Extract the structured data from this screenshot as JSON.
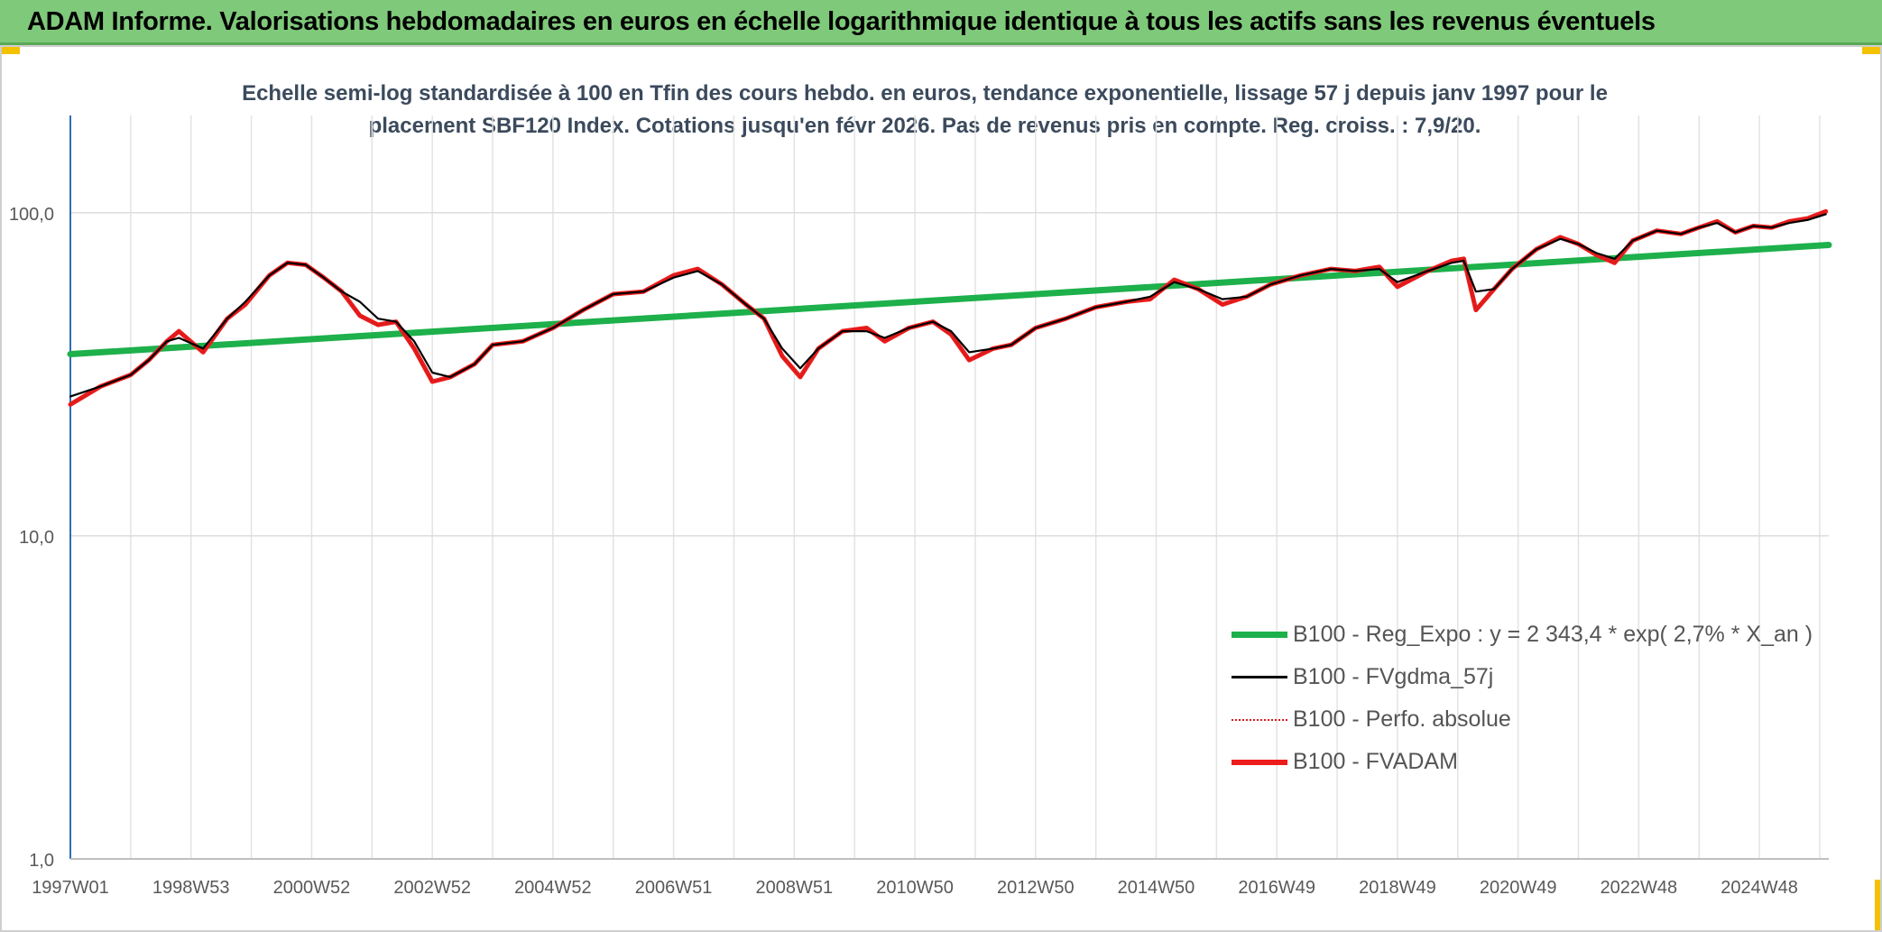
{
  "header": {
    "title": "ADAM Informe. Valorisations hebdomadaires en euros en échelle logarithmique identique à tous les actifs sans les revenus éventuels"
  },
  "chart_data": {
    "type": "line",
    "title": "Echelle semi-log standardisée à 100 en Tfin des cours hebdo. en euros, tendance exponentielle, lissage 57 j depuis janv 1997 pour le placement SBF120 Index. Cotations jusqu'en févr 2026. Pas de revenus pris en compte. Reg. croiss. : 7,9/20.",
    "title_line1": "Echelle semi-log standardisée à 100 en Tfin des cours hebdo. en euros, tendance exponentielle, lissage 57 j depuis janv 1997 pour le",
    "title_line2": "placement SBF120 Index. Cotations jusqu'en févr 2026. Pas de revenus pris en compte. Reg. croiss. : 7,9/20.",
    "y_scale": "log",
    "ylim": [
      1,
      200
    ],
    "xlim": [
      1997.0,
      2026.15
    ],
    "y_ticks": [
      {
        "value": 1,
        "label": "1,0"
      },
      {
        "value": 10,
        "label": "10,0"
      },
      {
        "value": 100,
        "label": "100,0"
      }
    ],
    "x_ticks": [
      {
        "year": 1997.0,
        "label": "1997W01"
      },
      {
        "year": 1999.0,
        "label": "1998W53"
      },
      {
        "year": 2001.0,
        "label": "2000W52"
      },
      {
        "year": 2003.0,
        "label": "2002W52"
      },
      {
        "year": 2005.0,
        "label": "2004W52"
      },
      {
        "year": 2007.0,
        "label": "2006W51"
      },
      {
        "year": 2009.0,
        "label": "2008W51"
      },
      {
        "year": 2011.0,
        "label": "2010W50"
      },
      {
        "year": 2013.0,
        "label": "2012W50"
      },
      {
        "year": 2015.0,
        "label": "2014W50"
      },
      {
        "year": 2017.0,
        "label": "2016W49"
      },
      {
        "year": 2019.0,
        "label": "2018W49"
      },
      {
        "year": 2021.0,
        "label": "2020W49"
      },
      {
        "year": 2023.0,
        "label": "2022W48"
      },
      {
        "year": 2025.0,
        "label": "2024W48"
      }
    ],
    "grid": true,
    "legend_position": "bottom-right",
    "series": [
      {
        "name": "B100 - Reg_Expo : y = 2 343,4 * exp( 2,7% *  X_an )",
        "color": "#1db04b",
        "style": "thick",
        "x": [
          1997.0,
          2026.15
        ],
        "values": [
          36.5,
          79.5
        ]
      },
      {
        "name": "B100 - FVgdma_57j",
        "color": "#000000",
        "style": "thin",
        "x": [
          1997.0,
          1997.5,
          1998.0,
          1998.3,
          1998.6,
          1998.8,
          1999.2,
          1999.6,
          1999.9,
          2000.3,
          2000.6,
          2000.9,
          2001.2,
          2001.5,
          2001.8,
          2002.1,
          2002.4,
          2002.7,
          2003.0,
          2003.3,
          2003.7,
          2004.0,
          2004.5,
          2005.0,
          2005.5,
          2006.0,
          2006.5,
          2007.0,
          2007.4,
          2007.8,
          2008.2,
          2008.5,
          2008.8,
          2009.1,
          2009.4,
          2009.8,
          2010.2,
          2010.5,
          2010.9,
          2011.3,
          2011.6,
          2011.9,
          2012.3,
          2012.6,
          2013.0,
          2013.5,
          2014.0,
          2014.5,
          2014.9,
          2015.3,
          2015.7,
          2016.1,
          2016.5,
          2016.9,
          2017.4,
          2017.9,
          2018.3,
          2018.7,
          2019.0,
          2019.5,
          2019.9,
          2020.1,
          2020.3,
          2020.6,
          2020.9,
          2021.3,
          2021.7,
          2022.0,
          2022.3,
          2022.6,
          2022.9,
          2023.3,
          2023.7,
          2024.0,
          2024.3,
          2024.6,
          2024.9,
          2025.2,
          2025.5,
          2025.8,
          2026.1
        ],
        "values": [
          27,
          29,
          31.5,
          35,
          40,
          41,
          38,
          47,
          53,
          64,
          70,
          69,
          63,
          57,
          53,
          47,
          46,
          40,
          32,
          31,
          34,
          39,
          40,
          44,
          50,
          56,
          57,
          63,
          66,
          60,
          52,
          47,
          38,
          33,
          38,
          43,
          43,
          41,
          44,
          46,
          43,
          37,
          38,
          39,
          44,
          47,
          51,
          53,
          55,
          61,
          58,
          54,
          55,
          60,
          64,
          67,
          66,
          67,
          61,
          66,
          70,
          71,
          57,
          58,
          67,
          77,
          83,
          80,
          75,
          72,
          82,
          88,
          86,
          90,
          93,
          87,
          91,
          90,
          93,
          95,
          99
        ]
      },
      {
        "name": "B100 - Perfo. absolue",
        "color": "#d81b1b",
        "style": "dotted",
        "x": [
          1997.0,
          1997.5,
          1998.0,
          1998.3,
          1998.6,
          1998.8,
          1999.2,
          1999.6,
          1999.9,
          2000.3,
          2000.6,
          2000.9,
          2001.2,
          2001.5,
          2001.8,
          2002.1,
          2002.4,
          2002.7,
          2003.0,
          2003.3,
          2003.7,
          2004.0,
          2004.5,
          2005.0,
          2005.5,
          2006.0,
          2006.5,
          2007.0,
          2007.4,
          2007.8,
          2008.2,
          2008.5,
          2008.8,
          2009.1,
          2009.4,
          2009.8,
          2010.2,
          2010.5,
          2010.9,
          2011.3,
          2011.6,
          2011.9,
          2012.3,
          2012.6,
          2013.0,
          2013.5,
          2014.0,
          2014.5,
          2014.9,
          2015.3,
          2015.7,
          2016.1,
          2016.5,
          2016.9,
          2017.4,
          2017.9,
          2018.3,
          2018.7,
          2019.0,
          2019.5,
          2019.9,
          2020.1,
          2020.3,
          2020.6,
          2020.9,
          2021.3,
          2021.7,
          2022.0,
          2022.3,
          2022.6,
          2022.9,
          2023.3,
          2023.7,
          2024.0,
          2024.3,
          2024.6,
          2024.9,
          2025.2,
          2025.5,
          2025.8,
          2026.1
        ],
        "values": [
          25.5,
          29,
          31.5,
          35,
          40,
          43,
          37,
          47,
          52,
          64,
          70,
          69,
          63,
          57,
          48,
          45,
          46,
          38,
          30,
          31,
          34,
          39,
          40,
          44,
          50,
          56,
          57,
          64,
          67,
          60,
          52,
          47,
          36,
          31,
          38,
          43,
          44,
          40,
          44,
          46,
          42,
          35,
          38,
          39,
          44,
          47,
          51,
          53,
          54,
          62,
          58,
          52,
          55,
          60,
          64,
          67,
          66,
          68,
          59,
          66,
          71,
          72,
          50,
          58,
          67,
          77,
          84,
          80,
          74,
          70,
          82,
          88,
          86,
          90,
          94,
          87,
          91,
          90,
          94,
          96,
          101
        ]
      },
      {
        "name": "B100 - FVADAM",
        "color": "#ec1c1c",
        "style": "thick",
        "x": [
          1997.0,
          1997.5,
          1998.0,
          1998.3,
          1998.6,
          1998.8,
          1999.2,
          1999.6,
          1999.9,
          2000.3,
          2000.6,
          2000.9,
          2001.2,
          2001.5,
          2001.8,
          2002.1,
          2002.4,
          2002.7,
          2003.0,
          2003.3,
          2003.7,
          2004.0,
          2004.5,
          2005.0,
          2005.5,
          2006.0,
          2006.5,
          2007.0,
          2007.4,
          2007.8,
          2008.2,
          2008.5,
          2008.8,
          2009.1,
          2009.4,
          2009.8,
          2010.2,
          2010.5,
          2010.9,
          2011.3,
          2011.6,
          2011.9,
          2012.3,
          2012.6,
          2013.0,
          2013.5,
          2014.0,
          2014.5,
          2014.9,
          2015.3,
          2015.7,
          2016.1,
          2016.5,
          2016.9,
          2017.4,
          2017.9,
          2018.3,
          2018.7,
          2019.0,
          2019.5,
          2019.9,
          2020.1,
          2020.3,
          2020.6,
          2020.9,
          2021.3,
          2021.7,
          2022.0,
          2022.3,
          2022.6,
          2022.9,
          2023.3,
          2023.7,
          2024.0,
          2024.3,
          2024.6,
          2024.9,
          2025.2,
          2025.5,
          2025.8,
          2026.1
        ],
        "values": [
          25.5,
          29,
          31.5,
          35,
          40,
          43,
          37,
          47,
          52,
          64,
          70,
          69,
          63,
          57,
          48,
          45,
          46,
          38,
          30,
          31,
          34,
          39,
          40,
          44,
          50,
          56,
          57,
          64,
          67,
          60,
          52,
          47,
          36,
          31,
          38,
          43,
          44,
          40,
          44,
          46,
          42,
          35,
          38,
          39,
          44,
          47,
          51,
          53,
          54,
          62,
          58,
          52,
          55,
          60,
          64,
          67,
          66,
          68,
          59,
          66,
          71,
          72,
          50,
          58,
          67,
          77,
          84,
          80,
          74,
          70,
          82,
          88,
          86,
          90,
          94,
          87,
          91,
          90,
          94,
          96,
          101
        ]
      }
    ]
  }
}
